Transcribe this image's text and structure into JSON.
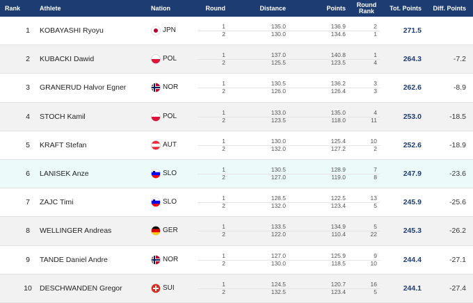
{
  "header": {
    "rank": "Rank",
    "athlete": "Athlete",
    "nation": "Nation",
    "round": "Round",
    "distance": "Distance",
    "points": "Points",
    "round_rank": "Round Rank",
    "total": "Tot. Points",
    "diff": "Diff. Points"
  },
  "rows": [
    {
      "rank": "1",
      "athlete": "KOBAYASHI Ryoyu",
      "nation": "JPN",
      "rounds": [
        {
          "round": "1",
          "distance": "135.0",
          "points": "136.9",
          "round_rank": "2"
        },
        {
          "round": "2",
          "distance": "130.0",
          "points": "134.6",
          "round_rank": "1"
        }
      ],
      "total": "271.5"
    },
    {
      "rank": "2",
      "athlete": "KUBACKI Dawid",
      "nation": "POL",
      "rounds": [
        {
          "round": "1",
          "distance": "137.0",
          "points": "140.8",
          "round_rank": "1"
        },
        {
          "round": "2",
          "distance": "125.5",
          "points": "123.5",
          "round_rank": "4"
        }
      ],
      "total": "264.3",
      "diff": "-7.2"
    },
    {
      "rank": "3",
      "athlete": "GRANERUD Halvor Egner",
      "nation": "NOR",
      "rounds": [
        {
          "round": "1",
          "distance": "130.5",
          "points": "136.2",
          "round_rank": "3"
        },
        {
          "round": "2",
          "distance": "126.0",
          "points": "126.4",
          "round_rank": "3"
        }
      ],
      "total": "262.6",
      "diff": "-8.9"
    },
    {
      "rank": "4",
      "athlete": "STOCH Kamil",
      "nation": "POL",
      "rounds": [
        {
          "round": "1",
          "distance": "133.0",
          "points": "135.0",
          "round_rank": "4"
        },
        {
          "round": "2",
          "distance": "123.5",
          "points": "118.0",
          "round_rank": "11"
        }
      ],
      "total": "253.0",
      "diff": "-18.5"
    },
    {
      "rank": "5",
      "athlete": "KRAFT Stefan",
      "nation": "AUT",
      "rounds": [
        {
          "round": "1",
          "distance": "130.0",
          "points": "125.4",
          "round_rank": "10"
        },
        {
          "round": "2",
          "distance": "132.0",
          "points": "127.2",
          "round_rank": "2"
        }
      ],
      "total": "252.6",
      "diff": "-18.9"
    },
    {
      "rank": "6",
      "athlete": "LANISEK Anze",
      "nation": "SLO",
      "rounds": [
        {
          "round": "1",
          "distance": "130.5",
          "points": "128.9",
          "round_rank": "7"
        },
        {
          "round": "2",
          "distance": "127.0",
          "points": "119.0",
          "round_rank": "8"
        }
      ],
      "total": "247.9",
      "diff": "-23.6"
    },
    {
      "rank": "7",
      "athlete": "ZAJC Timi",
      "nation": "SLO",
      "rounds": [
        {
          "round": "1",
          "distance": "128.5",
          "points": "122.5",
          "round_rank": "13"
        },
        {
          "round": "2",
          "distance": "132.0",
          "points": "123.4",
          "round_rank": "5"
        }
      ],
      "total": "245.9",
      "diff": "-25.6"
    },
    {
      "rank": "8",
      "athlete": "WELLINGER Andreas",
      "nation": "GER",
      "rounds": [
        {
          "round": "1",
          "distance": "133.5",
          "points": "134.9",
          "round_rank": "5"
        },
        {
          "round": "2",
          "distance": "122.0",
          "points": "110.4",
          "round_rank": "22"
        }
      ],
      "total": "245.3",
      "diff": "-26.2"
    },
    {
      "rank": "9",
      "athlete": "TANDE Daniel Andre",
      "nation": "NOR",
      "rounds": [
        {
          "round": "1",
          "distance": "127.0",
          "points": "125.9",
          "round_rank": "9"
        },
        {
          "round": "2",
          "distance": "130.0",
          "points": "118.5",
          "round_rank": "10"
        }
      ],
      "total": "244.4",
      "diff": "-27.1"
    },
    {
      "rank": "10",
      "athlete": "DESCHWANDEN Gregor",
      "nation": "SUI",
      "rounds": [
        {
          "round": "1",
          "distance": "124.5",
          "points": "120.7",
          "round_rank": "16"
        },
        {
          "round": "2",
          "distance": "132.5",
          "points": "123.4",
          "round_rank": "5"
        }
      ],
      "total": "244.1",
      "diff": "-27.4"
    }
  ]
}
